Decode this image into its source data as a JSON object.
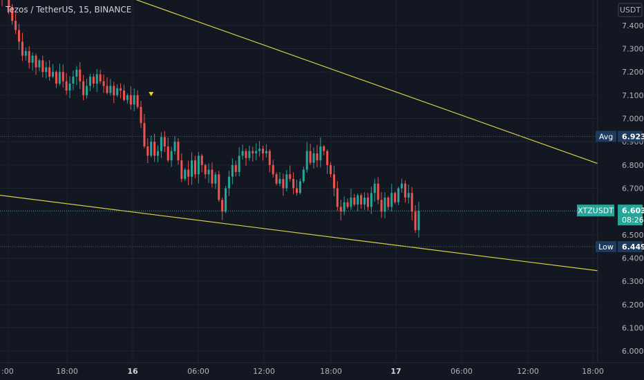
{
  "header": {
    "symbol_title": "Tezos / TetherUS, 15, BINANCE",
    "currency_label": "USDT"
  },
  "colors": {
    "background": "#131722",
    "grid": "#1f2330",
    "up": "#26a69a",
    "down": "#ef5350",
    "trendline": "#d6d04a",
    "last_price_tag": "#26a69a",
    "avg_tag": "#1e3a5f",
    "low_tag": "#1e3a5f",
    "axis_text": "#b2b5be"
  },
  "chart_data": {
    "type": "candlestick",
    "title": "Tezos / TetherUS, 15, BINANCE",
    "ylabel": "USDT",
    "ylim": [
      6.0,
      7.55
    ],
    "y_ticks": [
      "7.400",
      "7.300",
      "7.200",
      "7.100",
      "7.000",
      "6.900",
      "6.800",
      "6.700",
      "6.600",
      "6.500",
      "6.400",
      "6.300",
      "6.200",
      "6.100",
      "6.000"
    ],
    "x_ticks": [
      {
        "label": ":00",
        "bold": false
      },
      {
        "label": "18:00",
        "bold": false
      },
      {
        "label": "16",
        "bold": true
      },
      {
        "label": "06:00",
        "bold": false
      },
      {
        "label": "12:00",
        "bold": false
      },
      {
        "label": "18:00",
        "bold": false
      },
      {
        "label": "17",
        "bold": true
      },
      {
        "label": "06:00",
        "bold": false
      },
      {
        "label": "12:00",
        "bold": false
      },
      {
        "label": "18:00",
        "bold": false
      }
    ],
    "grid": true,
    "price_path": [
      7.52,
      7.55,
      7.48,
      7.42,
      7.38,
      7.33,
      7.27,
      7.29,
      7.24,
      7.27,
      7.22,
      7.25,
      7.2,
      7.22,
      7.18,
      7.2,
      7.15,
      7.2,
      7.16,
      7.12,
      7.15,
      7.18,
      7.21,
      7.16,
      7.1,
      7.14,
      7.18,
      7.15,
      7.19,
      7.16,
      7.14,
      7.11,
      7.14,
      7.1,
      7.13,
      7.12,
      7.08,
      7.1,
      7.06,
      7.1,
      7.05,
      6.98,
      6.88,
      6.84,
      6.9,
      6.84,
      6.86,
      6.92,
      6.88,
      6.82,
      6.86,
      6.9,
      6.82,
      6.74,
      6.78,
      6.75,
      6.82,
      6.76,
      6.84,
      6.8,
      6.76,
      6.78,
      6.72,
      6.76,
      6.65,
      6.6,
      6.7,
      6.75,
      6.8,
      6.77,
      6.84,
      6.86,
      6.83,
      6.86,
      6.85,
      6.86,
      6.87,
      6.85,
      6.86,
      6.8,
      6.76,
      6.72,
      6.74,
      6.7,
      6.76,
      6.74,
      6.7,
      6.68,
      6.73,
      6.78,
      6.86,
      6.81,
      6.85,
      6.82,
      6.88,
      6.86,
      6.8,
      6.76,
      6.7,
      6.62,
      6.6,
      6.64,
      6.62,
      6.66,
      6.63,
      6.67,
      6.63,
      6.66,
      6.62,
      6.68,
      6.72,
      6.65,
      6.6,
      6.66,
      6.62,
      6.68,
      6.64,
      6.7,
      6.72,
      6.66,
      6.68,
      6.6,
      6.52,
      6.603
    ],
    "trendlines": [
      {
        "from": {
          "x_frac": 0.1,
          "y": 7.62
        },
        "to": {
          "x_frac": 0.955,
          "y": 6.78
        }
      },
      {
        "from": {
          "x_frac": 0.0,
          "y": 6.67
        },
        "to": {
          "x_frac": 0.93,
          "y": 6.345
        }
      }
    ],
    "horizontal_levels": [
      {
        "label": "Avg",
        "value": 6.923,
        "value_label": "6.923"
      },
      {
        "label": "Low",
        "value": 6.449,
        "value_label": "6.449"
      }
    ],
    "last_price": {
      "symbol": "XTZUSDT",
      "value": 6.603,
      "value_label": "6.603",
      "countdown": "08:26"
    },
    "marker": {
      "shape": "triangle-down",
      "y": 7.105,
      "index": 44
    }
  }
}
